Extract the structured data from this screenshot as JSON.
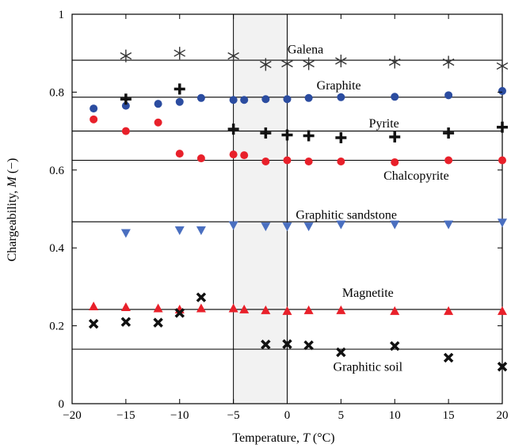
{
  "chart_data": {
    "type": "scatter",
    "title": "",
    "xlabel": "Temperature, ",
    "xlabel_var": "T",
    "xlabel_unit": " (°C)",
    "ylabel": "Chargeability, ",
    "ylabel_var": "M",
    "ylabel_unit": " (−)",
    "xlim": [
      -20,
      20
    ],
    "ylim": [
      0,
      1
    ],
    "xticks": [
      -20,
      -15,
      -10,
      -5,
      0,
      5,
      10,
      15,
      20
    ],
    "xtick_labels": [
      "−20",
      "−15",
      "−10",
      "−5",
      "0",
      "5",
      "10",
      "15",
      "20"
    ],
    "yticks": [
      0,
      0.2,
      0.4,
      0.6,
      0.8,
      1
    ],
    "ytick_labels": [
      "0",
      "0.2",
      "0.4",
      "0.6",
      "0.8",
      "1"
    ],
    "grid": false,
    "shaded_region": {
      "x": [
        -5,
        0
      ],
      "color": "#f2f2f2"
    },
    "series": [
      {
        "marker": "asterisk",
        "color": "#333333",
        "label": "Galena",
        "reference": 0.882,
        "label_pos": [
          1.7,
          0.91
        ],
        "points": [
          [
            -15,
            0.893
          ],
          [
            -10,
            0.9
          ],
          [
            -5,
            0.893
          ],
          [
            -2,
            0.871
          ],
          [
            0,
            0.873
          ],
          [
            2,
            0.873
          ],
          [
            5,
            0.88
          ],
          [
            10,
            0.877
          ],
          [
            15,
            0.877
          ],
          [
            20,
            0.867
          ]
        ]
      },
      {
        "marker": "circle",
        "color": "#2b4ca0",
        "label": "Graphite",
        "reference": 0.787,
        "label_pos": [
          4.8,
          0.817
        ],
        "points": [
          [
            -18,
            0.758
          ],
          [
            -15,
            0.765
          ],
          [
            -12,
            0.77
          ],
          [
            -10,
            0.775
          ],
          [
            -8,
            0.785
          ],
          [
            -5,
            0.78
          ],
          [
            -4,
            0.78
          ],
          [
            -2,
            0.782
          ],
          [
            0,
            0.782
          ],
          [
            2,
            0.785
          ],
          [
            5,
            0.787
          ],
          [
            10,
            0.788
          ],
          [
            15,
            0.792
          ],
          [
            20,
            0.803
          ]
        ]
      },
      {
        "marker": "plus",
        "color": "#111111",
        "label": "Pyrite",
        "reference": 0.7,
        "label_pos": [
          9,
          0.72
        ],
        "points": [
          [
            -15,
            0.782
          ],
          [
            -10,
            0.808
          ],
          [
            -5,
            0.705
          ],
          [
            -2,
            0.695
          ],
          [
            0,
            0.69
          ],
          [
            2,
            0.688
          ],
          [
            5,
            0.683
          ],
          [
            10,
            0.685
          ],
          [
            15,
            0.695
          ],
          [
            20,
            0.71
          ]
        ]
      },
      {
        "marker": "circle",
        "color": "#e8202a",
        "label": "Chalcopyrite",
        "reference": 0.625,
        "label_pos": [
          12,
          0.585
        ],
        "points": [
          [
            -18,
            0.73
          ],
          [
            -15,
            0.7
          ],
          [
            -12,
            0.722
          ],
          [
            -10,
            0.642
          ],
          [
            -8,
            0.63
          ],
          [
            -5,
            0.64
          ],
          [
            -4,
            0.638
          ],
          [
            -2,
            0.622
          ],
          [
            0,
            0.625
          ],
          [
            2,
            0.622
          ],
          [
            5,
            0.622
          ],
          [
            10,
            0.62
          ],
          [
            15,
            0.625
          ],
          [
            20,
            0.625
          ]
        ]
      },
      {
        "marker": "triangle-down",
        "color": "#4a6fc0",
        "label": "Graphitic sandstone",
        "reference": 0.467,
        "label_pos": [
          5.5,
          0.485
        ],
        "points": [
          [
            -15,
            0.438
          ],
          [
            -10,
            0.445
          ],
          [
            -8,
            0.445
          ],
          [
            -5,
            0.458
          ],
          [
            -2,
            0.455
          ],
          [
            0,
            0.455
          ],
          [
            2,
            0.455
          ],
          [
            5,
            0.46
          ],
          [
            10,
            0.46
          ],
          [
            15,
            0.46
          ],
          [
            20,
            0.465
          ]
        ]
      },
      {
        "marker": "triangle-up",
        "color": "#e8202a",
        "label": "Magnetite",
        "reference": 0.242,
        "label_pos": [
          7.5,
          0.285
        ],
        "points": [
          [
            -18,
            0.25
          ],
          [
            -15,
            0.248
          ],
          [
            -12,
            0.245
          ],
          [
            -10,
            0.242
          ],
          [
            -8,
            0.245
          ],
          [
            -5,
            0.245
          ],
          [
            -4,
            0.242
          ],
          [
            -2,
            0.24
          ],
          [
            0,
            0.238
          ],
          [
            2,
            0.24
          ],
          [
            5,
            0.24
          ],
          [
            10,
            0.238
          ],
          [
            15,
            0.238
          ],
          [
            20,
            0.238
          ]
        ]
      },
      {
        "marker": "x",
        "color": "#111111",
        "label": "Graphitic soil",
        "reference": 0.14,
        "label_pos": [
          7.5,
          0.095
        ],
        "points": [
          [
            -18,
            0.205
          ],
          [
            -15,
            0.21
          ],
          [
            -12,
            0.208
          ],
          [
            -10,
            0.233
          ],
          [
            -8,
            0.273
          ],
          [
            -2,
            0.152
          ],
          [
            0,
            0.153
          ],
          [
            2,
            0.15
          ],
          [
            5,
            0.132
          ],
          [
            10,
            0.148
          ],
          [
            15,
            0.118
          ],
          [
            20,
            0.095
          ]
        ]
      }
    ]
  }
}
